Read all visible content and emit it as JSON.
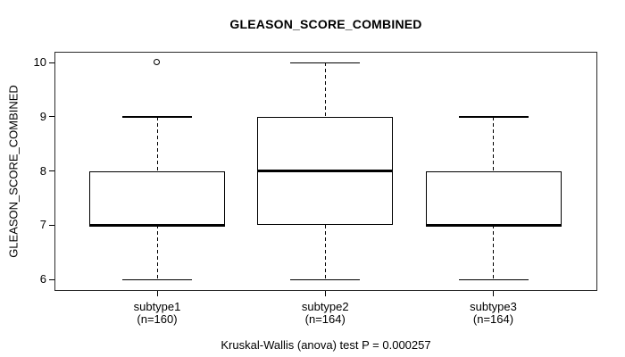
{
  "figure": {
    "title": "GLEASON_SCORE_COMBINED",
    "y_axis_label": "GLEASON_SCORE_COMBINED",
    "footer": "Kruskal-Wallis (anova) test P = 0.000257",
    "background_color": "#ffffff",
    "line_color": "#000000"
  },
  "chart_data": {
    "type": "boxplot",
    "title": "GLEASON_SCORE_COMBINED",
    "xlabel": "",
    "ylabel": "GLEASON_SCORE_COMBINED",
    "ylim": [
      5.8,
      10.2
    ],
    "yticks": [
      6,
      7,
      8,
      9,
      10
    ],
    "grid": false,
    "legend": "none",
    "annotation": "Kruskal-Wallis (anova) test P = 0.000257",
    "categories": [
      "subtype1",
      "subtype2",
      "subtype3"
    ],
    "groups": [
      {
        "label": "subtype1",
        "sublabel": "(n=160)",
        "n": 160,
        "whisker_low": 6,
        "q1": 7,
        "median": 7,
        "q3": 8,
        "whisker_high": 9,
        "outliers": [
          10
        ]
      },
      {
        "label": "subtype2",
        "sublabel": "(n=164)",
        "n": 164,
        "whisker_low": 6,
        "q1": 7,
        "median": 8,
        "q3": 9,
        "whisker_high": 10,
        "outliers": []
      },
      {
        "label": "subtype3",
        "sublabel": "(n=164)",
        "n": 164,
        "whisker_low": 6,
        "q1": 7,
        "median": 7,
        "q3": 8,
        "whisker_high": 9,
        "outliers": []
      }
    ]
  }
}
